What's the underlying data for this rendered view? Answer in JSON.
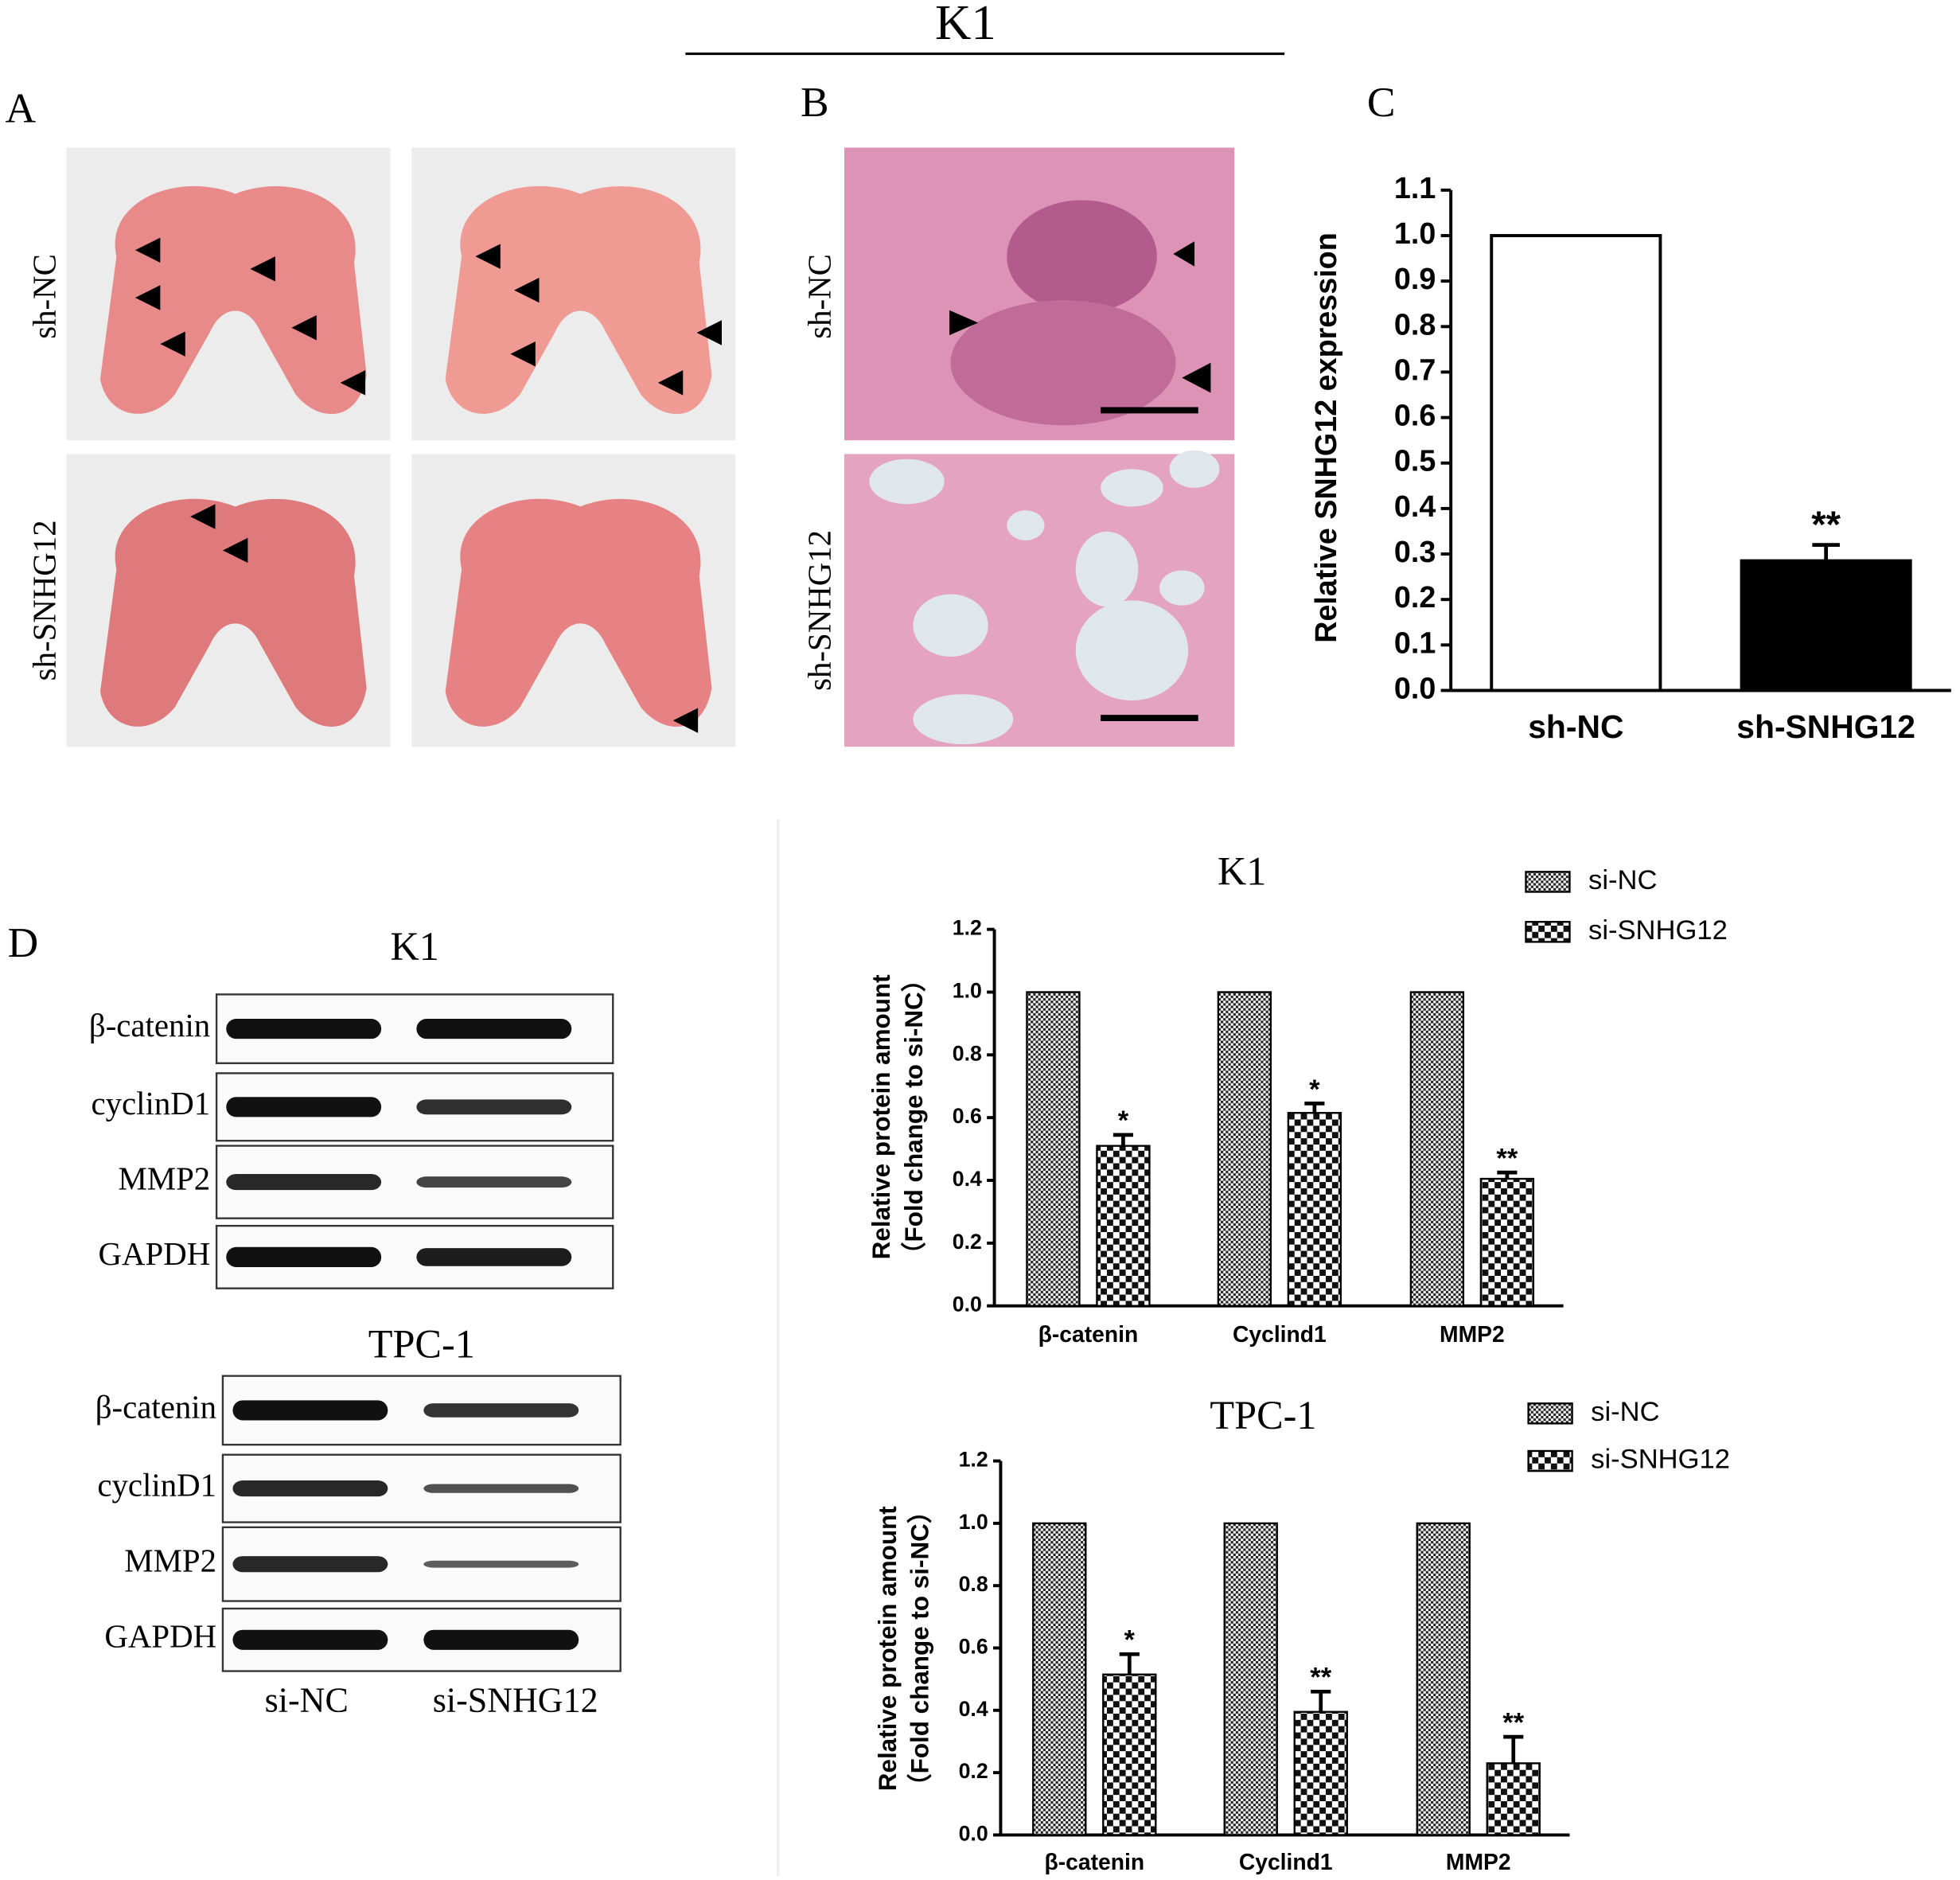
{
  "figure_title": "K1",
  "panels": {
    "a": "A",
    "b": "B",
    "c": "C",
    "d": "D"
  },
  "panel_a": {
    "rows": [
      "sh-NC",
      "sh-SNHG12"
    ]
  },
  "panel_b": {
    "rows": [
      "sh-NC",
      "sh-SNHG12"
    ]
  },
  "blots": [
    {
      "title": "K1",
      "rows": [
        "β-catenin",
        "cyclinD1",
        "MMP2",
        "GAPDH"
      ]
    },
    {
      "title": "TPC-1",
      "rows": [
        "β-catenin",
        "cyclinD1",
        "MMP2",
        "GAPDH"
      ]
    }
  ],
  "blot_columns": [
    "si-NC",
    "si-SNHG12"
  ],
  "chart_data": [
    {
      "type": "bar",
      "ylabel": "Relative SNHG12 expression",
      "categories": [
        "sh-NC",
        "sh-SNHG12"
      ],
      "values": [
        1.0,
        0.285
      ],
      "errors": [
        null,
        0.035
      ],
      "colors": [
        "#ffffff",
        "#000000"
      ],
      "annotations": [
        null,
        "**"
      ],
      "ylim": [
        0,
        1.1
      ],
      "yticks": [
        {
          "value": 0,
          "label": "0.0"
        },
        0.1,
        0.2,
        0.3,
        0.4,
        0.5,
        0.6,
        0.7,
        0.8,
        0.9,
        {
          "value": 1,
          "label": "1.0"
        },
        1.1
      ]
    },
    {
      "type": "grouped-bar",
      "title": "K1",
      "ylabel": [
        "Relative protein amount",
        "（Fold change to si-NC）"
      ],
      "categories": [
        "β-catenin",
        "Cyclind1",
        "MMP2"
      ],
      "series": [
        {
          "name": "si-NC",
          "color": "#000000",
          "pattern": "fine-check",
          "values": [
            1,
            1,
            1
          ]
        },
        {
          "name": "si-SNHG12",
          "color": "#000000",
          "pattern": "coarse-check",
          "values": [
            0.51,
            0.615,
            0.405
          ],
          "errors": [
            0.035,
            0.03,
            0.02
          ],
          "annotations": [
            "*",
            "*",
            "**"
          ]
        }
      ],
      "ylim": [
        0,
        1.2
      ],
      "yticks": [
        {
          "value": 0,
          "label": "0.0"
        },
        0.2,
        0.4,
        0.6,
        0.8,
        {
          "value": 1,
          "label": "1.0"
        },
        1.2
      ],
      "legend": "top-right"
    },
    {
      "type": "grouped-bar",
      "title": "TPC-1",
      "ylabel": [
        "Relative protein amount",
        "（Fold change to si-NC）"
      ],
      "categories": [
        "β-catenin",
        "Cyclind1",
        "MMP2"
      ],
      "series": [
        {
          "name": "si-NC",
          "color": "#000000",
          "pattern": "fine-check",
          "values": [
            1,
            1,
            1
          ]
        },
        {
          "name": "si-SNHG12",
          "color": "#000000",
          "pattern": "coarse-check",
          "values": [
            0.515,
            0.395,
            0.23
          ],
          "errors": [
            0.065,
            0.065,
            0.085
          ],
          "annotations": [
            "*",
            "**",
            "**"
          ]
        }
      ],
      "ylim": [
        0,
        1.2
      ],
      "yticks": [
        {
          "value": 0,
          "label": "0.0"
        },
        0.2,
        0.4,
        0.6,
        0.8,
        {
          "value": 1,
          "label": "1.0"
        },
        1.2
      ],
      "legend": "top-right"
    }
  ]
}
